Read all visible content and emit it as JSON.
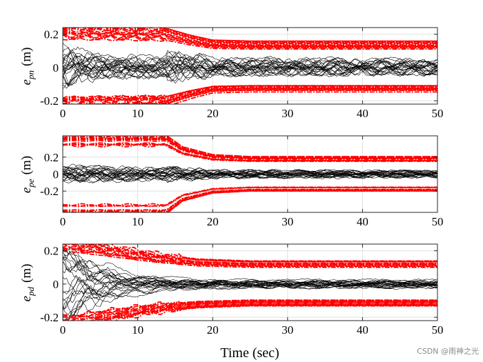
{
  "chart_data": [
    {
      "type": "line",
      "ylabel_var": "e",
      "ylabel_sub": "pn",
      "ylabel_unit": "(m)",
      "xlim": [
        0,
        50
      ],
      "ylim": [
        -0.22,
        0.24
      ],
      "xticks": [
        "0",
        "10",
        "20",
        "30",
        "40",
        "50"
      ],
      "yticks": [
        {
          "v": 0.2,
          "label": "0.2"
        },
        {
          "v": 0,
          "label": "0"
        },
        {
          "v": -0.2,
          "label": "-0.2"
        }
      ],
      "grid": true,
      "switch_time": 13.8,
      "bound_upper": [
        [
          0,
          0.21
        ],
        [
          13.8,
          0.2
        ],
        [
          17,
          0.165
        ],
        [
          20,
          0.14
        ],
        [
          25,
          0.135
        ],
        [
          50,
          0.135
        ]
      ],
      "bound_lower": [
        [
          0,
          -0.21
        ],
        [
          13.8,
          -0.2
        ],
        [
          17,
          -0.16
        ],
        [
          20,
          -0.13
        ],
        [
          25,
          -0.125
        ],
        [
          50,
          -0.125
        ]
      ],
      "error_spread": [
        [
          0,
          0.18
        ],
        [
          5,
          0.1
        ],
        [
          13.8,
          0.09
        ],
        [
          14,
          0.13
        ],
        [
          18,
          0.11
        ],
        [
          20,
          0.08
        ],
        [
          50,
          0.07
        ]
      ]
    },
    {
      "type": "line",
      "ylabel_var": "e",
      "ylabel_sub": "pe",
      "ylabel_unit": "(m)",
      "xlim": [
        0,
        50
      ],
      "ylim": [
        -0.45,
        0.45
      ],
      "xticks": [
        "0",
        "10",
        "20",
        "30",
        "40",
        "50"
      ],
      "yticks": [
        {
          "v": 0.2,
          "label": "0.2"
        },
        {
          "v": 0,
          "label": "0"
        },
        {
          "v": -0.2,
          "label": "-0.2"
        }
      ],
      "grid": true,
      "switch_time": 13.8,
      "bound_upper": [
        [
          0,
          0.4
        ],
        [
          13.8,
          0.4
        ],
        [
          16,
          0.28
        ],
        [
          20,
          0.2
        ],
        [
          25,
          0.18
        ],
        [
          50,
          0.18
        ]
      ],
      "bound_lower": [
        [
          0,
          -0.4
        ],
        [
          13.8,
          -0.4
        ],
        [
          16,
          -0.27
        ],
        [
          20,
          -0.19
        ],
        [
          25,
          -0.17
        ],
        [
          50,
          -0.17
        ]
      ],
      "error_spread": [
        [
          0,
          0.14
        ],
        [
          13.8,
          0.1
        ],
        [
          14,
          0.12
        ],
        [
          18,
          0.09
        ],
        [
          20,
          0.07
        ],
        [
          50,
          0.06
        ]
      ]
    },
    {
      "type": "line",
      "ylabel_var": "e",
      "ylabel_sub": "pd",
      "ylabel_unit": "(m)",
      "xlabel": "Time (sec)",
      "xlim": [
        0,
        50
      ],
      "ylim": [
        -0.22,
        0.24
      ],
      "xticks": [
        "0",
        "10",
        "20",
        "30",
        "40",
        "50"
      ],
      "yticks": [
        {
          "v": 0.2,
          "label": "0.2"
        },
        {
          "v": 0,
          "label": "0"
        },
        {
          "v": -0.2,
          "label": "-0.2"
        }
      ],
      "grid": true,
      "switch_time": 16,
      "bound_upper": [
        [
          0,
          0.24
        ],
        [
          6,
          0.2
        ],
        [
          12,
          0.16
        ],
        [
          18,
          0.13
        ],
        [
          25,
          0.12
        ],
        [
          50,
          0.12
        ]
      ],
      "bound_lower": [
        [
          0,
          -0.24
        ],
        [
          6,
          -0.19
        ],
        [
          12,
          -0.15
        ],
        [
          18,
          -0.125
        ],
        [
          25,
          -0.115
        ],
        [
          50,
          -0.115
        ]
      ],
      "error_spread": [
        [
          0,
          0.22
        ],
        [
          3,
          0.18
        ],
        [
          8,
          0.08
        ],
        [
          15,
          0.05
        ],
        [
          20,
          0.04
        ],
        [
          50,
          0.04
        ]
      ]
    }
  ],
  "style": {
    "bound_color": "#ff0000",
    "error_color": "#000000",
    "grid_color": "#e0e0e0"
  },
  "watermark": "CSDN @雨神之光"
}
